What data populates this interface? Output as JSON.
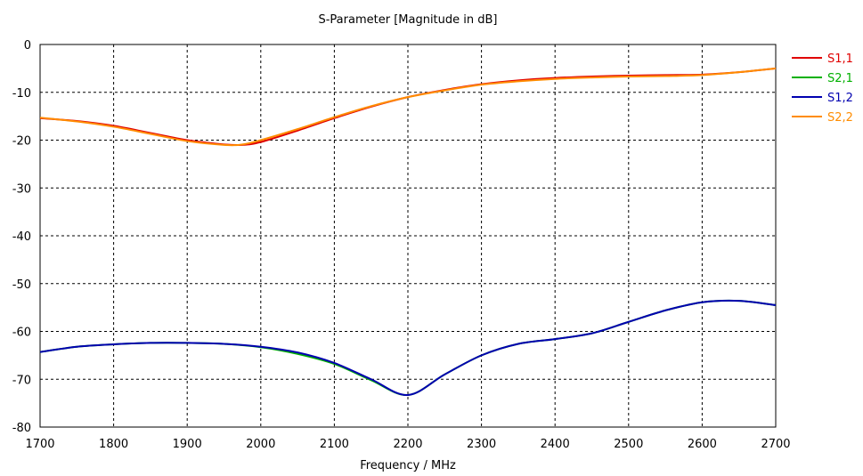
{
  "chart_data": {
    "type": "line",
    "title": "S-Parameter [Magnitude in dB]",
    "xlabel": "Frequency / MHz",
    "ylabel": "",
    "xlim": [
      1700,
      2700
    ],
    "ylim": [
      -80,
      0
    ],
    "xticks": [
      1700,
      1800,
      1900,
      2000,
      2100,
      2200,
      2300,
      2400,
      2500,
      2600,
      2700
    ],
    "yticks": [
      0,
      -10,
      -20,
      -30,
      -40,
      -50,
      -60,
      -70,
      -80
    ],
    "grid": true,
    "legend_position": "right",
    "series": [
      {
        "name": "S1,1",
        "color": "#e00000",
        "x": [
          1700,
          1750,
          1800,
          1850,
          1900,
          1950,
          1975,
          2000,
          2050,
          2100,
          2150,
          2200,
          2250,
          2300,
          2350,
          2400,
          2450,
          2500,
          2550,
          2600,
          2650,
          2700
        ],
        "y": [
          -15.4,
          -16.0,
          -17.0,
          -18.5,
          -20.0,
          -20.9,
          -21.0,
          -20.4,
          -18.0,
          -15.4,
          -13.0,
          -11.0,
          -9.5,
          -8.3,
          -7.5,
          -7.0,
          -6.7,
          -6.5,
          -6.4,
          -6.3,
          -5.8,
          -5.0
        ]
      },
      {
        "name": "S2,1",
        "color": "#00b000",
        "x": [
          1700,
          1750,
          1800,
          1850,
          1900,
          1950,
          2000,
          2050,
          2100,
          2150,
          2200,
          2250,
          2300,
          2350,
          2400,
          2450,
          2500,
          2550,
          2600,
          2650,
          2700
        ],
        "y": [
          -64.3,
          -63.2,
          -62.7,
          -62.4,
          -62.4,
          -62.6,
          -63.3,
          -64.7,
          -66.8,
          -70.2,
          -73.3,
          -69.0,
          -65.0,
          -62.6,
          -61.6,
          -60.4,
          -58.0,
          -55.6,
          -53.9,
          -53.6,
          -54.5
        ]
      },
      {
        "name": "S1,2",
        "color": "#0000b0",
        "x": [
          1700,
          1750,
          1800,
          1850,
          1900,
          1950,
          2000,
          2050,
          2100,
          2150,
          2200,
          2250,
          2300,
          2350,
          2400,
          2450,
          2500,
          2550,
          2600,
          2650,
          2700
        ],
        "y": [
          -64.3,
          -63.2,
          -62.7,
          -62.4,
          -62.4,
          -62.6,
          -63.2,
          -64.4,
          -66.6,
          -70.0,
          -73.3,
          -69.0,
          -65.0,
          -62.6,
          -61.6,
          -60.4,
          -58.0,
          -55.6,
          -53.9,
          -53.6,
          -54.5
        ]
      },
      {
        "name": "S2,2",
        "color": "#ff8c00",
        "x": [
          1700,
          1750,
          1800,
          1850,
          1900,
          1950,
          1975,
          2000,
          2050,
          2100,
          2150,
          2200,
          2250,
          2300,
          2350,
          2400,
          2450,
          2500,
          2550,
          2600,
          2650,
          2700
        ],
        "y": [
          -15.3,
          -16.1,
          -17.2,
          -18.7,
          -20.2,
          -21.0,
          -20.9,
          -20.0,
          -17.7,
          -15.2,
          -12.9,
          -11.0,
          -9.6,
          -8.4,
          -7.7,
          -7.2,
          -6.9,
          -6.7,
          -6.6,
          -6.4,
          -5.8,
          -5.0
        ]
      }
    ]
  }
}
